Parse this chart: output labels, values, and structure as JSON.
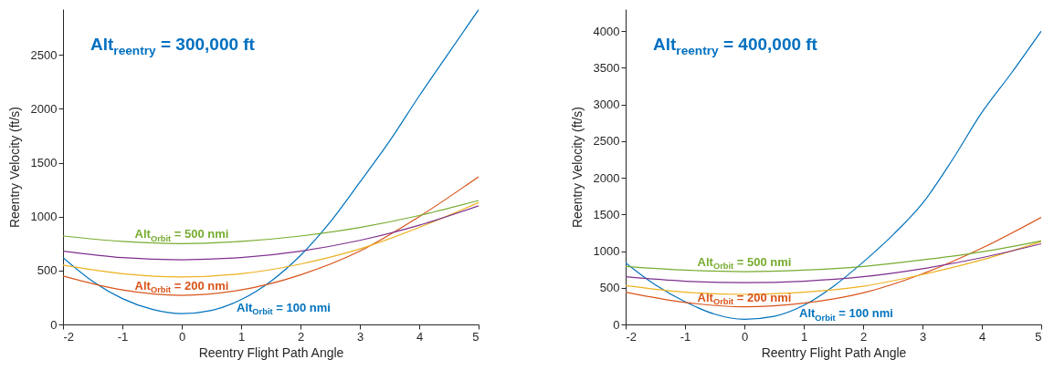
{
  "chart_data": [
    {
      "type": "line",
      "annotations": [
        "Alt$_{reentry}$ = 300,000 ft"
      ],
      "xlabel": "Reentry Flight Path Angle",
      "ylabel": "Reentry Velocity (ft/s)",
      "xlim": [
        -2,
        5
      ],
      "xticks": [
        -2,
        -1,
        0,
        1,
        2,
        3,
        4,
        5
      ],
      "ylim": [
        0,
        2925
      ],
      "yticks": [
        0,
        500,
        1000,
        1500,
        2000,
        2500
      ],
      "grid": false,
      "x": [
        -2,
        -1,
        0,
        1,
        2,
        3,
        4,
        5
      ],
      "series": [
        {
          "name": "Alt$_{Orbit}$ = 100 nmi",
          "color": "#0072bd",
          "x": [
            -2,
            -1.5,
            -1,
            -0.5,
            0,
            0.5,
            1,
            1.5,
            2,
            2.5,
            3,
            3.5,
            4,
            4.5,
            5
          ],
          "values": [
            620,
            400,
            240,
            140,
            100,
            130,
            230,
            400,
            640,
            950,
            1320,
            1700,
            2120,
            2520,
            2920
          ]
        },
        {
          "name": "Alt$_{Orbit}$ = 200 nmi",
          "color": "#d95319",
          "values": [
            450,
            320,
            270,
            320,
            460,
            680,
            1000,
            1370
          ]
        },
        {
          "color": "#edb120",
          "values": [
            550,
            470,
            440,
            470,
            560,
            700,
            900,
            1130
          ]
        },
        {
          "color": "#7e2f8e",
          "values": [
            680,
            620,
            600,
            620,
            680,
            780,
            920,
            1100
          ]
        },
        {
          "name": "Alt$_{Orbit}$ = 500 nmi",
          "color": "#77ac30",
          "values": [
            820,
            770,
            750,
            770,
            820,
            900,
            1010,
            1150
          ]
        }
      ]
    },
    {
      "type": "line",
      "annotations": [
        "Alt$_{reentry}$ = 400,000 ft"
      ],
      "xlabel": "Reentry Flight Path Angle",
      "ylabel": "Reentry Velocity (ft/s)",
      "xlim": [
        -2,
        5
      ],
      "xticks": [
        -2,
        -1,
        0,
        1,
        2,
        3,
        4,
        5
      ],
      "ylim": [
        0,
        4300
      ],
      "yticks": [
        0,
        500,
        1000,
        1500,
        2000,
        2500,
        3000,
        3500,
        4000
      ],
      "grid": false,
      "x": [
        -2,
        -1,
        0,
        1,
        2,
        3,
        4,
        5
      ],
      "series": [
        {
          "name": "Alt$_{Orbit}$ = 100 nmi",
          "color": "#0072bd",
          "x": [
            -2,
            -1.5,
            -1,
            -0.5,
            0,
            0.5,
            1,
            1.5,
            2,
            2.5,
            3,
            3.5,
            4,
            4.5,
            5
          ],
          "values": [
            840,
            540,
            310,
            140,
            70,
            110,
            260,
            520,
            850,
            1220,
            1650,
            2240,
            2890,
            3430,
            4000
          ]
        },
        {
          "name": "Alt$_{Orbit}$ = 200 nmi",
          "color": "#d95319",
          "values": [
            440,
            300,
            240,
            290,
            430,
            690,
            1040,
            1460
          ]
        },
        {
          "color": "#edb120",
          "values": [
            530,
            440,
            410,
            440,
            520,
            680,
            880,
            1130
          ]
        },
        {
          "color": "#7e2f8e",
          "values": [
            650,
            590,
            570,
            590,
            650,
            760,
            910,
            1100
          ]
        },
        {
          "name": "Alt$_{Orbit}$ = 500 nmi",
          "color": "#77ac30",
          "values": [
            790,
            740,
            720,
            740,
            790,
            880,
            990,
            1140
          ]
        }
      ]
    }
  ]
}
